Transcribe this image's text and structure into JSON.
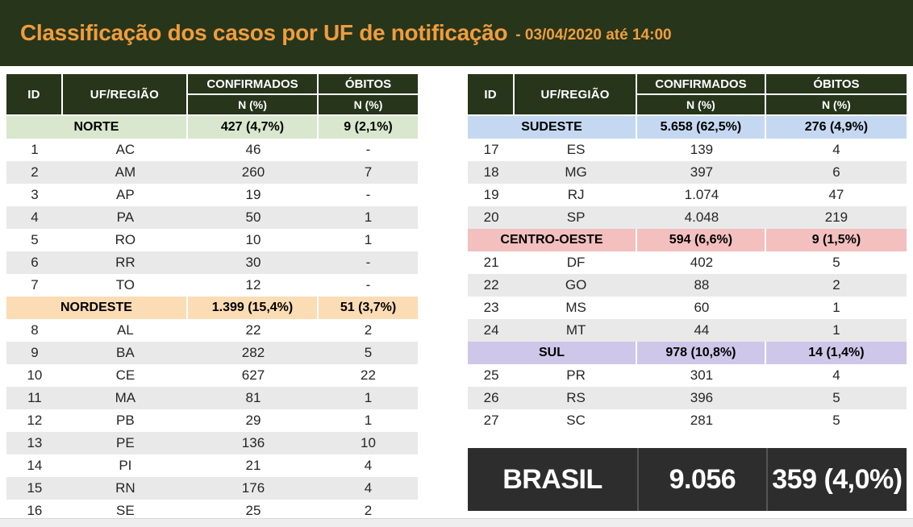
{
  "header": {
    "title": "Classificação dos casos por UF de notificação",
    "subtitle": "- 03/04/2020 até 14:00"
  },
  "columns": {
    "id": "ID",
    "uf_regiao": "UF/REGIÃO",
    "confirmados": "CONFIRMADOS",
    "obitos": "ÓBITOS",
    "n_pct": "N (%)"
  },
  "colors": {
    "title_bar_bg": "#27351b",
    "title_text": "#f09d3c",
    "table_header_bg": "#27351b",
    "row_alt": "#e9e9e9",
    "brasil_bg": "#2d2d2d",
    "norte": "#d8e7cd",
    "nordeste": "#fbdcb4",
    "sudeste": "#c5d8f1",
    "centro_oeste": "#f3bfbf",
    "sul": "#cfc7e9"
  },
  "tables": {
    "left": {
      "sections": [
        {
          "region": "NORTE",
          "confirmados": "427 (4,7%)",
          "obitos": "9 (2,1%)",
          "color": "#d8e7cd",
          "rows": [
            {
              "id": "1",
              "uf": "AC",
              "confirmados": "46",
              "obitos": "-"
            },
            {
              "id": "2",
              "uf": "AM",
              "confirmados": "260",
              "obitos": "7"
            },
            {
              "id": "3",
              "uf": "AP",
              "confirmados": "19",
              "obitos": "-"
            },
            {
              "id": "4",
              "uf": "PA",
              "confirmados": "50",
              "obitos": "1"
            },
            {
              "id": "5",
              "uf": "RO",
              "confirmados": "10",
              "obitos": "1"
            },
            {
              "id": "6",
              "uf": "RR",
              "confirmados": "30",
              "obitos": "-"
            },
            {
              "id": "7",
              "uf": "TO",
              "confirmados": "12",
              "obitos": "-"
            }
          ]
        },
        {
          "region": "NORDESTE",
          "confirmados": "1.399 (15,4%)",
          "obitos": "51 (3,7%)",
          "color": "#fbdcb4",
          "rows": [
            {
              "id": "8",
              "uf": "AL",
              "confirmados": "22",
              "obitos": "2"
            },
            {
              "id": "9",
              "uf": "BA",
              "confirmados": "282",
              "obitos": "5"
            },
            {
              "id": "10",
              "uf": "CE",
              "confirmados": "627",
              "obitos": "22"
            },
            {
              "id": "11",
              "uf": "MA",
              "confirmados": "81",
              "obitos": "1"
            },
            {
              "id": "12",
              "uf": "PB",
              "confirmados": "29",
              "obitos": "1"
            },
            {
              "id": "13",
              "uf": "PE",
              "confirmados": "136",
              "obitos": "10"
            },
            {
              "id": "14",
              "uf": "PI",
              "confirmados": "21",
              "obitos": "4"
            },
            {
              "id": "15",
              "uf": "RN",
              "confirmados": "176",
              "obitos": "4"
            },
            {
              "id": "16",
              "uf": "SE",
              "confirmados": "25",
              "obitos": "2"
            }
          ]
        }
      ]
    },
    "right": {
      "sections": [
        {
          "region": "SUDESTE",
          "confirmados": "5.658 (62,5%)",
          "obitos": "276 (4,9%)",
          "color": "#c5d8f1",
          "rows": [
            {
              "id": "17",
              "uf": "ES",
              "confirmados": "139",
              "obitos": "4"
            },
            {
              "id": "18",
              "uf": "MG",
              "confirmados": "397",
              "obitos": "6"
            },
            {
              "id": "19",
              "uf": "RJ",
              "confirmados": "1.074",
              "obitos": "47"
            },
            {
              "id": "20",
              "uf": "SP",
              "confirmados": "4.048",
              "obitos": "219"
            }
          ]
        },
        {
          "region": "CENTRO-OESTE",
          "confirmados": "594 (6,6%)",
          "obitos": "9 (1,5%)",
          "color": "#f3bfbf",
          "rows": [
            {
              "id": "21",
              "uf": "DF",
              "confirmados": "402",
              "obitos": "5"
            },
            {
              "id": "22",
              "uf": "GO",
              "confirmados": "88",
              "obitos": "2"
            },
            {
              "id": "23",
              "uf": "MS",
              "confirmados": "60",
              "obitos": "1"
            },
            {
              "id": "24",
              "uf": "MT",
              "confirmados": "44",
              "obitos": "1"
            }
          ]
        },
        {
          "region": "SUL",
          "confirmados": "978 (10,8%)",
          "obitos": "14 (1,4%)",
          "color": "#cfc7e9",
          "rows": [
            {
              "id": "25",
              "uf": "PR",
              "confirmados": "301",
              "obitos": "4"
            },
            {
              "id": "26",
              "uf": "RS",
              "confirmados": "396",
              "obitos": "5"
            },
            {
              "id": "27",
              "uf": "SC",
              "confirmados": "281",
              "obitos": "5"
            }
          ]
        }
      ]
    }
  },
  "brasil": {
    "label": "BRASIL",
    "confirmados": "9.056",
    "obitos": "359 (4,0%)"
  },
  "chart_data": {
    "type": "table",
    "title": "Classificação dos casos por UF de notificação - 03/04/2020 até 14:00",
    "columns": [
      "ID",
      "UF/REGIÃO",
      "CONFIRMADOS N (%)",
      "ÓBITOS N (%)"
    ],
    "rows": [
      [
        "",
        "NORTE",
        "427 (4,7%)",
        "9 (2,1%)"
      ],
      [
        "1",
        "AC",
        "46",
        "-"
      ],
      [
        "2",
        "AM",
        "260",
        "7"
      ],
      [
        "3",
        "AP",
        "19",
        "-"
      ],
      [
        "4",
        "PA",
        "50",
        "1"
      ],
      [
        "5",
        "RO",
        "10",
        "1"
      ],
      [
        "6",
        "RR",
        "30",
        "-"
      ],
      [
        "7",
        "TO",
        "12",
        "-"
      ],
      [
        "",
        "NORDESTE",
        "1.399 (15,4%)",
        "51 (3,7%)"
      ],
      [
        "8",
        "AL",
        "22",
        "2"
      ],
      [
        "9",
        "BA",
        "282",
        "5"
      ],
      [
        "10",
        "CE",
        "627",
        "22"
      ],
      [
        "11",
        "MA",
        "81",
        "1"
      ],
      [
        "12",
        "PB",
        "29",
        "1"
      ],
      [
        "13",
        "PE",
        "136",
        "10"
      ],
      [
        "14",
        "PI",
        "21",
        "4"
      ],
      [
        "15",
        "RN",
        "176",
        "4"
      ],
      [
        "16",
        "SE",
        "25",
        "2"
      ],
      [
        "",
        "SUDESTE",
        "5.658 (62,5%)",
        "276 (4,9%)"
      ],
      [
        "17",
        "ES",
        "139",
        "4"
      ],
      [
        "18",
        "MG",
        "397",
        "6"
      ],
      [
        "19",
        "RJ",
        "1.074",
        "47"
      ],
      [
        "20",
        "SP",
        "4.048",
        "219"
      ],
      [
        "",
        "CENTRO-OESTE",
        "594 (6,6%)",
        "9 (1,5%)"
      ],
      [
        "21",
        "DF",
        "402",
        "5"
      ],
      [
        "22",
        "GO",
        "88",
        "2"
      ],
      [
        "23",
        "MS",
        "60",
        "1"
      ],
      [
        "24",
        "MT",
        "44",
        "1"
      ],
      [
        "",
        "SUL",
        "978 (10,8%)",
        "14 (1,4%)"
      ],
      [
        "25",
        "PR",
        "301",
        "4"
      ],
      [
        "26",
        "RS",
        "396",
        "5"
      ],
      [
        "27",
        "SC",
        "281",
        "5"
      ],
      [
        "",
        "BRASIL",
        "9.056",
        "359 (4,0%)"
      ]
    ]
  }
}
